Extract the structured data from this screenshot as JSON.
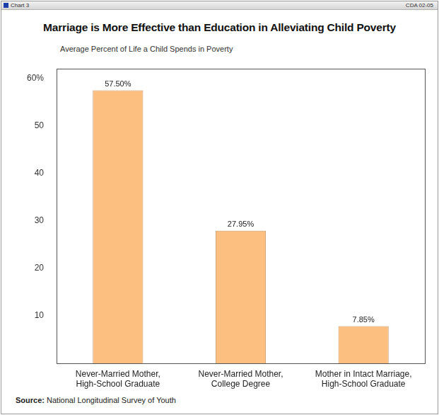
{
  "header": {
    "left": "Chart 3",
    "right": "CDA 02-05"
  },
  "chart_data": {
    "type": "bar",
    "title": "Marriage is More Effective than Education in Alleviating Child Poverty",
    "subtitle": "Average Percent of Life a Child Spends in Poverty",
    "categories": [
      "Never-Married Mother, High-School Graduate",
      "Never-Married Mother, College Degree",
      "Mother in Intact Marriage, High-School Graduate"
    ],
    "values": [
      57.5,
      27.95,
      7.85
    ],
    "value_labels": [
      "57.50%",
      "27.95%",
      "7.85%"
    ],
    "data_labels": true,
    "color": "#fdbf80",
    "ylim": [
      0,
      62
    ],
    "yticks": [
      10,
      20,
      30,
      40,
      50,
      {
        "value": 60,
        "label": "60%"
      }
    ],
    "grid": false,
    "source": "Source: National Longitudinal Survey of Youth"
  }
}
